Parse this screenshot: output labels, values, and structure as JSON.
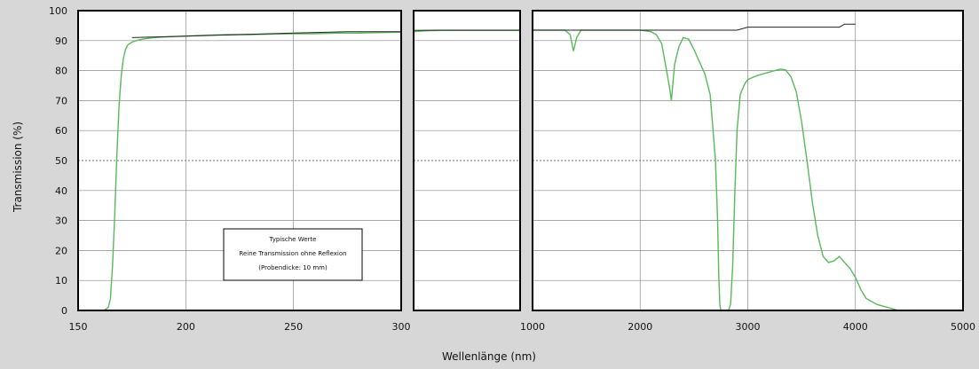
{
  "chart_data": {
    "type": "line",
    "title": "",
    "xlabel": "Wellenlänge (nm)",
    "ylabel": "Transmission (%)",
    "ylim": [
      0,
      100
    ],
    "yticks": [
      0,
      10,
      20,
      30,
      40,
      50,
      60,
      70,
      80,
      90,
      100
    ],
    "grid": true,
    "legend_placement": "bottom-center",
    "annotation": {
      "lines": [
        "Typische Werte",
        "Reine Transmission ohne Reflexion",
        "(Probendicke: 10 mm)"
      ]
    },
    "colors": {
      "measured": "#5cb85c",
      "reference": "#222222",
      "grid": "#8a8a8a",
      "frame": "#000000",
      "panel_bg": "#ffffff",
      "page_bg": "#d7d7d7"
    },
    "panels": [
      {
        "id": "uv",
        "xlim": [
          150,
          300
        ],
        "xticks": [
          150,
          200,
          250,
          300
        ],
        "xticklabels": [
          "150",
          "200",
          "250",
          "300"
        ],
        "series": [
          {
            "x": [
              160,
              162,
              164,
              165,
              166,
              167,
              168,
              169,
              170,
              171,
              172,
              173,
              174,
              175,
              177,
              180,
              185,
              190,
              200,
              210,
              220,
              230,
              240,
              250,
              260,
              270,
              280,
              290,
              300
            ],
            "y": [
              0,
              0,
              1,
              4,
              15,
              32,
              52,
              68,
              78,
              84,
              87,
              88.5,
              89,
              89.5,
              90,
              90.5,
              91,
              91.2,
              91.5,
              91.8,
              92,
              92,
              92.2,
              92.3,
              92.3,
              92.5,
              92.5,
              92.7,
              92.8
            ]
          },
          {
            "x": [
              175,
              200,
              225,
              250,
              275,
              300
            ],
            "y": [
              91,
              91.5,
              92,
              92.5,
              93,
              93
            ]
          }
        ]
      },
      {
        "id": "vis",
        "xlim": [
          300,
          1000
        ],
        "xticks": [
          300,
          1000
        ],
        "xticklabels": [
          "",
          ""
        ],
        "series": [
          {
            "x": [
              300,
              350,
              400,
              500,
              600,
              700,
              800,
              900,
              1000
            ],
            "y": [
              93,
              93.2,
              93.3,
              93.4,
              93.4,
              93.4,
              93.4,
              93.4,
              93.4
            ]
          },
          {
            "x": [
              300,
              500,
              1000
            ],
            "y": [
              93.4,
              93.5,
              93.5
            ]
          }
        ]
      },
      {
        "id": "ir",
        "xlim": [
          1000,
          5000
        ],
        "xticks": [
          1000,
          2000,
          3000,
          4000,
          5000
        ],
        "xticklabels": [
          "1000",
          "2000",
          "3000",
          "4000",
          "5000"
        ],
        "series": [
          {
            "x": [
              1000,
              1300,
              1350,
              1380,
              1410,
              1450,
              1600,
              2000,
              2100,
              2150,
              2200,
              2240,
              2270,
              2290,
              2320,
              2360,
              2400,
              2450,
              2500,
              2550,
              2600,
              2650,
              2700,
              2720,
              2730,
              2740,
              2750,
              2800,
              2820,
              2840,
              2860,
              2880,
              2900,
              2930,
              2970,
              3000,
              3050,
              3100,
              3150,
              3200,
              3250,
              3300,
              3350,
              3400,
              3450,
              3500,
              3550,
              3600,
              3650,
              3700,
              3750,
              3800,
              3850,
              3900,
              3950,
              4000,
              4050,
              4100,
              4200,
              4300,
              4400,
              4500,
              4700,
              5000
            ],
            "y": [
              93.5,
              93.5,
              92,
              86.5,
              91,
              93.5,
              93.5,
              93.5,
              93,
              92,
              89,
              81,
              75,
              70,
              82,
              88,
              91,
              90.5,
              87,
              83,
              79,
              72,
              50,
              30,
              12,
              2,
              0,
              0,
              0,
              2,
              15,
              40,
              60,
              72,
              75.5,
              77,
              77.8,
              78.5,
              79,
              79.5,
              80,
              80.5,
              80.3,
              78,
              73,
              63,
              50,
              36,
              25,
              18,
              16,
              16.5,
              18,
              16,
              14,
              11,
              7,
              4,
              2,
              1,
              0,
              0,
              0,
              0
            ]
          },
          {
            "x": [
              1000,
              2500,
              2900,
              3000,
              3500,
              3850,
              3900,
              4000
            ],
            "y": [
              93.5,
              93.5,
              93.5,
              94.5,
              94.5,
              94.5,
              95.5,
              95.5
            ]
          }
        ]
      }
    ]
  }
}
